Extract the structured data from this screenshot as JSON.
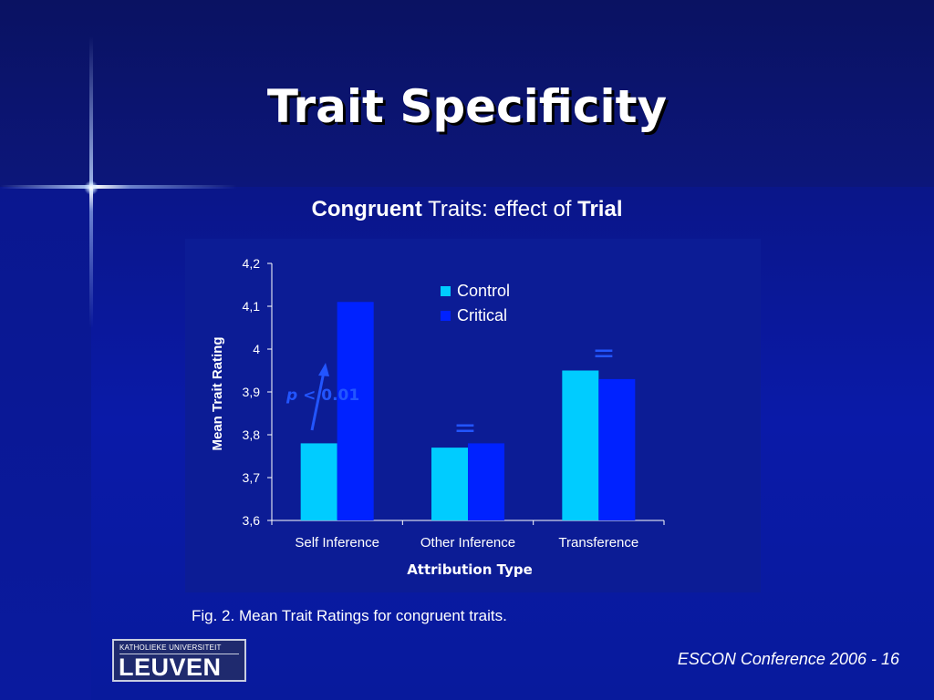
{
  "slide": {
    "title": "Trait Specificity",
    "subtitle": {
      "part1": "Congruent",
      "part2": " Traits: effect of ",
      "part3": "Trial"
    },
    "caption": "Fig. 2.  Mean Trait Ratings for congruent traits.",
    "footer": "ESCON Conference 2006 - 16",
    "logo": {
      "top_text": "KATHOLIEKE UNIVERSITEIT",
      "main_text": "LEUVEN"
    }
  },
  "chart_data": {
    "type": "bar",
    "categories": [
      "Self Inference",
      "Other Inference",
      "Transference"
    ],
    "series": [
      {
        "name": "Control",
        "values": [
          3.78,
          3.77,
          3.95
        ],
        "color": "#00ccff"
      },
      {
        "name": "Critical",
        "values": [
          4.11,
          3.78,
          3.93
        ],
        "color": "#0022ff"
      }
    ],
    "xlabel": "Attribution Type",
    "ylabel": "Mean Trait Rating",
    "ylim": [
      3.6,
      4.2
    ],
    "yticks": [
      "3,6",
      "3,7",
      "3,8",
      "3,9",
      "4",
      "4,1",
      "4,2"
    ],
    "grid": false,
    "legend": "top-center",
    "annotations": {
      "significance": {
        "p_label": "p",
        "rest": " < 0.01"
      },
      "equal_sign": "="
    },
    "colors": {
      "text": "#ffffff",
      "annotation": "#2255ff"
    }
  }
}
